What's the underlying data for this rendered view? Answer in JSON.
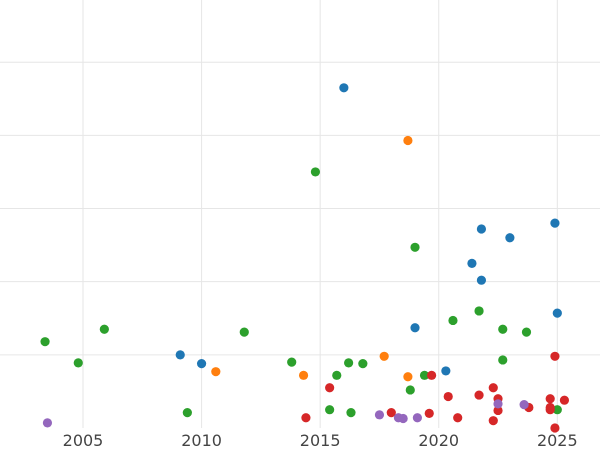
{
  "chart_data": {
    "type": "scatter",
    "title": "",
    "xlabel": "",
    "ylabel": "",
    "xlim": [
      2001.5,
      2026.8
    ],
    "ylim": [
      0,
      5.85
    ],
    "grid": true,
    "x_ticks": [
      2005,
      2010,
      2015,
      2020,
      2025
    ],
    "x_tick_labels": [
      "2005",
      "2010",
      "2015",
      "2020",
      "2025"
    ],
    "y_gridlines": [
      1,
      2,
      3,
      4,
      5
    ],
    "legend": "none",
    "series": [
      {
        "color": "#1f77b4",
        "points": [
          {
            "x": 2016.0,
            "y": 4.65
          },
          {
            "x": 2024.9,
            "y": 2.8
          },
          {
            "x": 2021.8,
            "y": 2.72
          },
          {
            "x": 2023.0,
            "y": 2.6
          },
          {
            "x": 2021.4,
            "y": 2.25
          },
          {
            "x": 2021.8,
            "y": 2.02
          },
          {
            "x": 2025.0,
            "y": 1.57
          },
          {
            "x": 2019.0,
            "y": 1.37
          },
          {
            "x": 2009.1,
            "y": 1.0
          },
          {
            "x": 2010.0,
            "y": 0.88
          },
          {
            "x": 2020.3,
            "y": 0.78
          }
        ]
      },
      {
        "color": "#ff7f0e",
        "points": [
          {
            "x": 2018.7,
            "y": 3.93
          },
          {
            "x": 2017.7,
            "y": 0.98
          },
          {
            "x": 2010.6,
            "y": 0.77
          },
          {
            "x": 2014.3,
            "y": 0.72
          },
          {
            "x": 2018.7,
            "y": 0.7
          }
        ]
      },
      {
        "color": "#2ca02c",
        "points": [
          {
            "x": 2014.8,
            "y": 3.5
          },
          {
            "x": 2019.0,
            "y": 2.47
          },
          {
            "x": 2021.7,
            "y": 1.6
          },
          {
            "x": 2020.6,
            "y": 1.47
          },
          {
            "x": 2005.9,
            "y": 1.35
          },
          {
            "x": 2022.7,
            "y": 1.35
          },
          {
            "x": 2011.8,
            "y": 1.31
          },
          {
            "x": 2023.7,
            "y": 1.31
          },
          {
            "x": 2003.4,
            "y": 1.18
          },
          {
            "x": 2004.8,
            "y": 0.89
          },
          {
            "x": 2013.8,
            "y": 0.9
          },
          {
            "x": 2016.2,
            "y": 0.89
          },
          {
            "x": 2016.8,
            "y": 0.88
          },
          {
            "x": 2022.7,
            "y": 0.93
          },
          {
            "x": 2015.7,
            "y": 0.72
          },
          {
            "x": 2019.4,
            "y": 0.72
          },
          {
            "x": 2018.8,
            "y": 0.52
          },
          {
            "x": 2015.4,
            "y": 0.25
          },
          {
            "x": 2016.3,
            "y": 0.21
          },
          {
            "x": 2009.4,
            "y": 0.21
          },
          {
            "x": 2025.0,
            "y": 0.25
          }
        ]
      },
      {
        "color": "#d62728",
        "points": [
          {
            "x": 2024.9,
            "y": 0.98
          },
          {
            "x": 2019.7,
            "y": 0.72
          },
          {
            "x": 2015.4,
            "y": 0.55
          },
          {
            "x": 2022.3,
            "y": 0.55
          },
          {
            "x": 2020.4,
            "y": 0.43
          },
          {
            "x": 2021.7,
            "y": 0.45
          },
          {
            "x": 2022.5,
            "y": 0.4
          },
          {
            "x": 2024.7,
            "y": 0.4
          },
          {
            "x": 2025.3,
            "y": 0.38
          },
          {
            "x": 2023.8,
            "y": 0.28
          },
          {
            "x": 2024.7,
            "y": 0.25
          },
          {
            "x": 2024.7,
            "y": 0.28
          },
          {
            "x": 2022.5,
            "y": 0.24
          },
          {
            "x": 2018.0,
            "y": 0.21
          },
          {
            "x": 2019.6,
            "y": 0.2
          },
          {
            "x": 2014.4,
            "y": 0.14
          },
          {
            "x": 2020.8,
            "y": 0.14
          },
          {
            "x": 2022.3,
            "y": 0.1
          },
          {
            "x": 2024.9,
            "y": 0.0
          }
        ]
      },
      {
        "color": "#9467bd",
        "points": [
          {
            "x": 2003.5,
            "y": 0.07
          },
          {
            "x": 2017.5,
            "y": 0.18
          },
          {
            "x": 2018.3,
            "y": 0.14
          },
          {
            "x": 2018.5,
            "y": 0.13
          },
          {
            "x": 2019.1,
            "y": 0.14
          },
          {
            "x": 2022.5,
            "y": 0.33
          },
          {
            "x": 2023.6,
            "y": 0.32
          }
        ]
      }
    ]
  }
}
